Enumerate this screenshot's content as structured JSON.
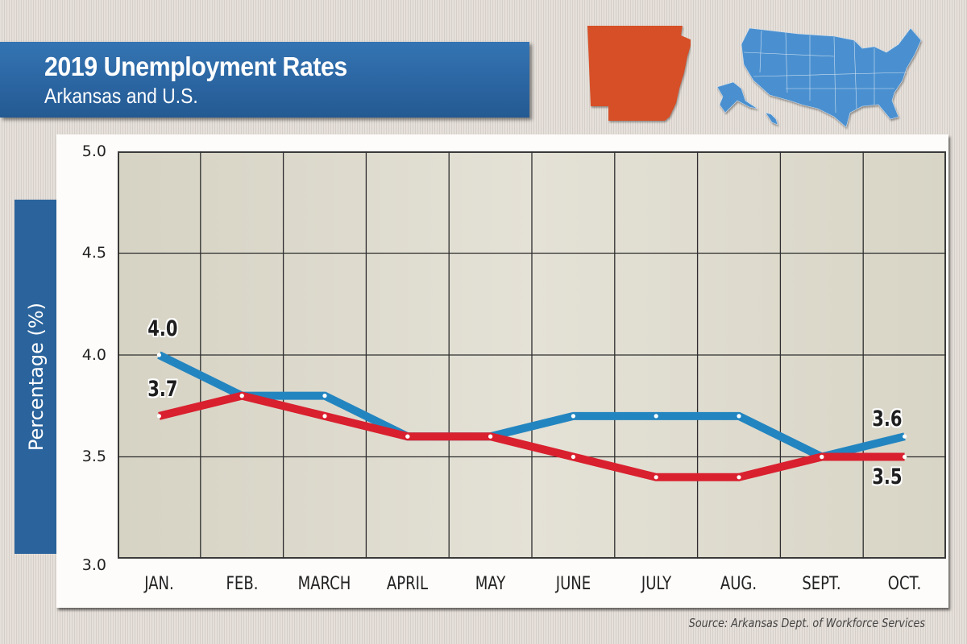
{
  "header": {
    "title": "2019 Unemployment Rates",
    "subtitle": "Arkansas and U.S."
  },
  "maps": {
    "arkansas_color": "#d64f27",
    "us_color": "#4a90d0"
  },
  "axis": {
    "ylabel": "Percentage (%)",
    "yticks": [
      "5.0",
      "4.5",
      "4.0",
      "3.5",
      "3.0"
    ],
    "xticks": [
      "JAN.",
      "FEB.",
      "MARCH",
      "APRIL",
      "MAY",
      "JUNE",
      "JULY",
      "AUG.",
      "SEPT.",
      "OCT."
    ]
  },
  "labels": {
    "us_start": "4.0",
    "ar_start": "3.7",
    "us_end": "3.6",
    "ar_end": "3.5"
  },
  "source": "Source: Arkansas Dept. of Workforce Services",
  "chart_data": {
    "type": "line",
    "title": "2019 Unemployment Rates",
    "subtitle": "Arkansas and U.S.",
    "xlabel": "",
    "ylabel": "Percentage (%)",
    "ylim": [
      3.0,
      5.0
    ],
    "yticks": [
      3.0,
      3.5,
      4.0,
      4.5,
      5.0
    ],
    "grid": true,
    "legend": "none (series identified by map icons: Arkansas orange-red, U.S. blue)",
    "categories": [
      "JAN.",
      "FEB.",
      "MARCH",
      "APRIL",
      "MAY",
      "JUNE",
      "JULY",
      "AUG.",
      "SEPT.",
      "OCT."
    ],
    "series": [
      {
        "name": "U.S.",
        "color": "#2385c0",
        "values": [
          4.0,
          3.8,
          3.8,
          3.6,
          3.6,
          3.7,
          3.7,
          3.7,
          3.5,
          3.6
        ]
      },
      {
        "name": "Arkansas",
        "color": "#d9202e",
        "values": [
          3.7,
          3.8,
          3.7,
          3.6,
          3.6,
          3.5,
          3.4,
          3.4,
          3.5,
          3.5
        ]
      }
    ],
    "annotations": [
      "4.0",
      "3.7",
      "3.6",
      "3.5"
    ],
    "source": "Source: Arkansas Dept. of Workforce Services"
  }
}
